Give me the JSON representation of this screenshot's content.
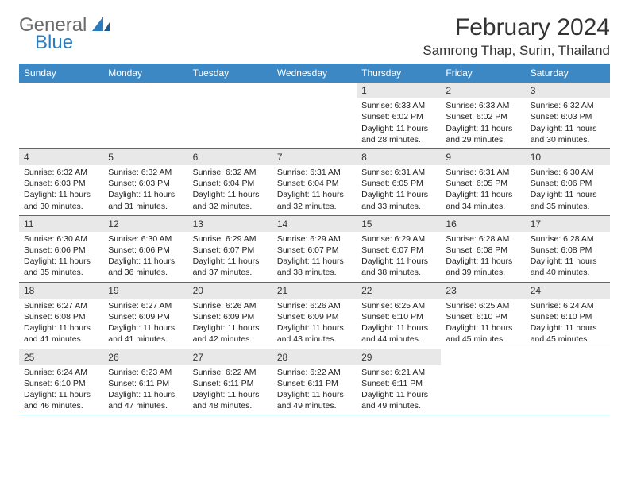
{
  "logo": {
    "general": "General",
    "blue": "Blue"
  },
  "title": "February 2024",
  "location": "Samrong Thap, Surin, Thailand",
  "colors": {
    "header_bg": "#3b88c4",
    "header_text": "#ffffff",
    "daynum_bg": "#e8e8e8",
    "week_border": "#3b6fa0",
    "logo_gray": "#6b6b6b",
    "logo_blue": "#2b7bbf",
    "text": "#333333"
  },
  "day_names": [
    "Sunday",
    "Monday",
    "Tuesday",
    "Wednesday",
    "Thursday",
    "Friday",
    "Saturday"
  ],
  "weeks": [
    [
      {
        "n": "",
        "sr": "",
        "ss": "",
        "dl": ""
      },
      {
        "n": "",
        "sr": "",
        "ss": "",
        "dl": ""
      },
      {
        "n": "",
        "sr": "",
        "ss": "",
        "dl": ""
      },
      {
        "n": "",
        "sr": "",
        "ss": "",
        "dl": ""
      },
      {
        "n": "1",
        "sr": "Sunrise: 6:33 AM",
        "ss": "Sunset: 6:02 PM",
        "dl": "Daylight: 11 hours and 28 minutes."
      },
      {
        "n": "2",
        "sr": "Sunrise: 6:33 AM",
        "ss": "Sunset: 6:02 PM",
        "dl": "Daylight: 11 hours and 29 minutes."
      },
      {
        "n": "3",
        "sr": "Sunrise: 6:32 AM",
        "ss": "Sunset: 6:03 PM",
        "dl": "Daylight: 11 hours and 30 minutes."
      }
    ],
    [
      {
        "n": "4",
        "sr": "Sunrise: 6:32 AM",
        "ss": "Sunset: 6:03 PM",
        "dl": "Daylight: 11 hours and 30 minutes."
      },
      {
        "n": "5",
        "sr": "Sunrise: 6:32 AM",
        "ss": "Sunset: 6:03 PM",
        "dl": "Daylight: 11 hours and 31 minutes."
      },
      {
        "n": "6",
        "sr": "Sunrise: 6:32 AM",
        "ss": "Sunset: 6:04 PM",
        "dl": "Daylight: 11 hours and 32 minutes."
      },
      {
        "n": "7",
        "sr": "Sunrise: 6:31 AM",
        "ss": "Sunset: 6:04 PM",
        "dl": "Daylight: 11 hours and 32 minutes."
      },
      {
        "n": "8",
        "sr": "Sunrise: 6:31 AM",
        "ss": "Sunset: 6:05 PM",
        "dl": "Daylight: 11 hours and 33 minutes."
      },
      {
        "n": "9",
        "sr": "Sunrise: 6:31 AM",
        "ss": "Sunset: 6:05 PM",
        "dl": "Daylight: 11 hours and 34 minutes."
      },
      {
        "n": "10",
        "sr": "Sunrise: 6:30 AM",
        "ss": "Sunset: 6:06 PM",
        "dl": "Daylight: 11 hours and 35 minutes."
      }
    ],
    [
      {
        "n": "11",
        "sr": "Sunrise: 6:30 AM",
        "ss": "Sunset: 6:06 PM",
        "dl": "Daylight: 11 hours and 35 minutes."
      },
      {
        "n": "12",
        "sr": "Sunrise: 6:30 AM",
        "ss": "Sunset: 6:06 PM",
        "dl": "Daylight: 11 hours and 36 minutes."
      },
      {
        "n": "13",
        "sr": "Sunrise: 6:29 AM",
        "ss": "Sunset: 6:07 PM",
        "dl": "Daylight: 11 hours and 37 minutes."
      },
      {
        "n": "14",
        "sr": "Sunrise: 6:29 AM",
        "ss": "Sunset: 6:07 PM",
        "dl": "Daylight: 11 hours and 38 minutes."
      },
      {
        "n": "15",
        "sr": "Sunrise: 6:29 AM",
        "ss": "Sunset: 6:07 PM",
        "dl": "Daylight: 11 hours and 38 minutes."
      },
      {
        "n": "16",
        "sr": "Sunrise: 6:28 AM",
        "ss": "Sunset: 6:08 PM",
        "dl": "Daylight: 11 hours and 39 minutes."
      },
      {
        "n": "17",
        "sr": "Sunrise: 6:28 AM",
        "ss": "Sunset: 6:08 PM",
        "dl": "Daylight: 11 hours and 40 minutes."
      }
    ],
    [
      {
        "n": "18",
        "sr": "Sunrise: 6:27 AM",
        "ss": "Sunset: 6:08 PM",
        "dl": "Daylight: 11 hours and 41 minutes."
      },
      {
        "n": "19",
        "sr": "Sunrise: 6:27 AM",
        "ss": "Sunset: 6:09 PM",
        "dl": "Daylight: 11 hours and 41 minutes."
      },
      {
        "n": "20",
        "sr": "Sunrise: 6:26 AM",
        "ss": "Sunset: 6:09 PM",
        "dl": "Daylight: 11 hours and 42 minutes."
      },
      {
        "n": "21",
        "sr": "Sunrise: 6:26 AM",
        "ss": "Sunset: 6:09 PM",
        "dl": "Daylight: 11 hours and 43 minutes."
      },
      {
        "n": "22",
        "sr": "Sunrise: 6:25 AM",
        "ss": "Sunset: 6:10 PM",
        "dl": "Daylight: 11 hours and 44 minutes."
      },
      {
        "n": "23",
        "sr": "Sunrise: 6:25 AM",
        "ss": "Sunset: 6:10 PM",
        "dl": "Daylight: 11 hours and 45 minutes."
      },
      {
        "n": "24",
        "sr": "Sunrise: 6:24 AM",
        "ss": "Sunset: 6:10 PM",
        "dl": "Daylight: 11 hours and 45 minutes."
      }
    ],
    [
      {
        "n": "25",
        "sr": "Sunrise: 6:24 AM",
        "ss": "Sunset: 6:10 PM",
        "dl": "Daylight: 11 hours and 46 minutes."
      },
      {
        "n": "26",
        "sr": "Sunrise: 6:23 AM",
        "ss": "Sunset: 6:11 PM",
        "dl": "Daylight: 11 hours and 47 minutes."
      },
      {
        "n": "27",
        "sr": "Sunrise: 6:22 AM",
        "ss": "Sunset: 6:11 PM",
        "dl": "Daylight: 11 hours and 48 minutes."
      },
      {
        "n": "28",
        "sr": "Sunrise: 6:22 AM",
        "ss": "Sunset: 6:11 PM",
        "dl": "Daylight: 11 hours and 49 minutes."
      },
      {
        "n": "29",
        "sr": "Sunrise: 6:21 AM",
        "ss": "Sunset: 6:11 PM",
        "dl": "Daylight: 11 hours and 49 minutes."
      },
      {
        "n": "",
        "sr": "",
        "ss": "",
        "dl": ""
      },
      {
        "n": "",
        "sr": "",
        "ss": "",
        "dl": ""
      }
    ]
  ]
}
